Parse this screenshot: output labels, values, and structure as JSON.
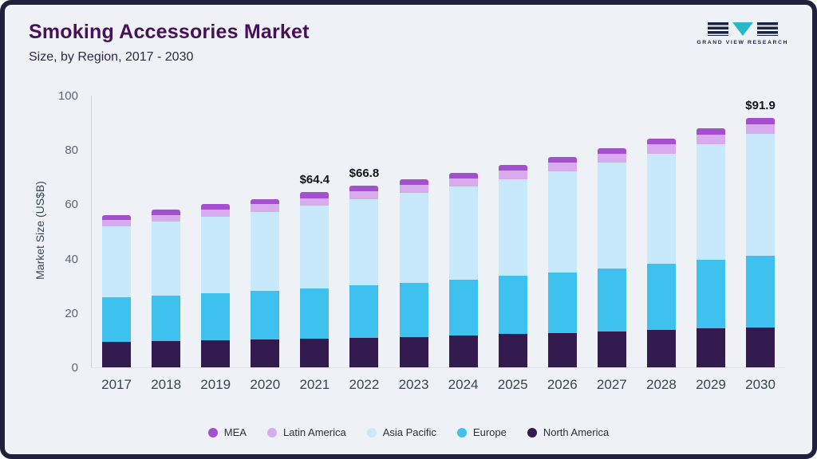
{
  "header": {
    "title": "Smoking Accessories Market",
    "subtitle": "Size, by Region, 2017 - 2030"
  },
  "logo": {
    "text": "GRAND VIEW RESEARCH",
    "navy": "#1d2545",
    "teal": "#28b9c9"
  },
  "chart_data": {
    "type": "bar",
    "stacked": true,
    "title": "Smoking Accessories Market",
    "subtitle": "Size, by Region, 2017 - 2030",
    "ylabel": "Market Size (US$B)",
    "ylim": [
      0,
      100
    ],
    "yticks": [
      0,
      20,
      40,
      60,
      80,
      100
    ],
    "grid": false,
    "legend_position": "bottom",
    "categories": [
      "2017",
      "2018",
      "2019",
      "2020",
      "2021",
      "2022",
      "2023",
      "2024",
      "2025",
      "2026",
      "2027",
      "2028",
      "2029",
      "2030"
    ],
    "series": [
      {
        "name": "North America",
        "color": "#331a4f",
        "values": [
          9.3,
          9.6,
          9.9,
          10.2,
          10.5,
          10.9,
          11.3,
          11.7,
          12.2,
          12.7,
          13.2,
          13.8,
          14.3,
          14.6
        ]
      },
      {
        "name": "Europe",
        "color": "#3fc1f0",
        "values": [
          16.5,
          16.9,
          17.4,
          17.9,
          18.5,
          19.2,
          19.9,
          20.6,
          21.4,
          22.3,
          23.2,
          24.2,
          25.2,
          26.5
        ]
      },
      {
        "name": "Asia Pacific",
        "color": "#c8e9fb",
        "values": [
          26.2,
          27.1,
          28.2,
          29.2,
          30.5,
          31.7,
          32.9,
          34.2,
          35.6,
          37.1,
          38.9,
          40.7,
          42.7,
          44.9
        ]
      },
      {
        "name": "Latin America",
        "color": "#d8abee",
        "values": [
          2.4,
          2.5,
          2.6,
          2.7,
          2.8,
          2.9,
          3.0,
          3.1,
          3.1,
          3.2,
          3.2,
          3.3,
          3.4,
          3.5
        ]
      },
      {
        "name": "MEA",
        "color": "#a450ce",
        "values": [
          1.6,
          1.9,
          2.0,
          2.0,
          2.1,
          2.1,
          2.1,
          2.1,
          2.2,
          2.2,
          2.3,
          2.3,
          2.4,
          2.4
        ]
      }
    ],
    "legend": [
      "MEA",
      "Latin America",
      "Asia Pacific",
      "Europe",
      "North America"
    ],
    "annotations": [
      {
        "category": "2021",
        "text": "$64.4"
      },
      {
        "category": "2022",
        "text": "$66.8"
      },
      {
        "category": "2030",
        "text": "$91.9"
      }
    ]
  }
}
